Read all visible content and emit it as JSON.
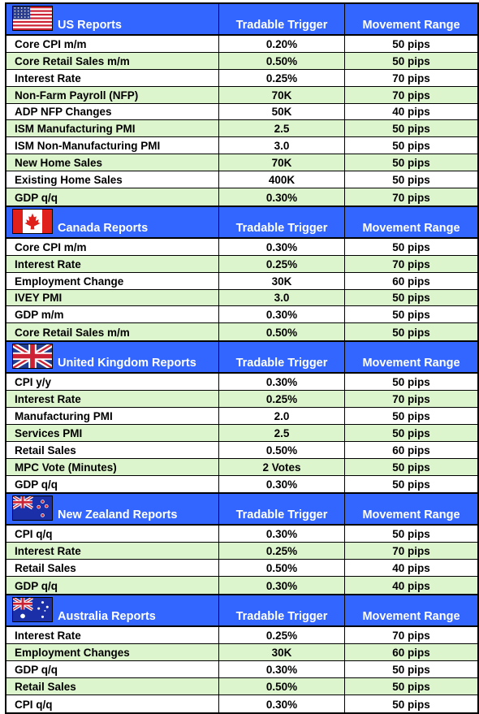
{
  "sections": [
    {
      "title": "US Reports",
      "flag": "us-flag-icon",
      "col_trigger": "Tradable Trigger",
      "col_range": "Movement Range",
      "rows": [
        {
          "name": "Core CPI m/m",
          "trigger": "0.20%",
          "range": "50 pips"
        },
        {
          "name": "Core Retail Sales m/m",
          "trigger": "0.50%",
          "range": "50 pips"
        },
        {
          "name": "Interest Rate",
          "trigger": "0.25%",
          "range": "70 pips"
        },
        {
          "name": "Non-Farm Payroll (NFP)",
          "trigger": "70K",
          "range": "70 pips"
        },
        {
          "name": "ADP NFP Changes",
          "trigger": "50K",
          "range": "40 pips"
        },
        {
          "name": "ISM Manufacturing PMI",
          "trigger": "2.5",
          "range": "50 pips"
        },
        {
          "name": "ISM Non-Manufacturing PMI",
          "trigger": "3.0",
          "range": "50 pips"
        },
        {
          "name": "New Home Sales",
          "trigger": "70K",
          "range": "50 pips"
        },
        {
          "name": "Existing Home Sales",
          "trigger": "400K",
          "range": "50 pips"
        },
        {
          "name": "GDP q/q",
          "trigger": "0.30%",
          "range": "70 pips"
        }
      ]
    },
    {
      "title": "Canada Reports",
      "flag": "canada-flag-icon",
      "col_trigger": "Tradable Trigger",
      "col_range": "Movement Range",
      "rows": [
        {
          "name": "Core CPI m/m",
          "trigger": "0.30%",
          "range": "50 pips"
        },
        {
          "name": "Interest Rate",
          "trigger": "0.25%",
          "range": "70 pips"
        },
        {
          "name": "Employment Change",
          "trigger": "30K",
          "range": "60 pips"
        },
        {
          "name": "IVEY PMI",
          "trigger": "3.0",
          "range": "50 pips"
        },
        {
          "name": "GDP m/m",
          "trigger": "0.30%",
          "range": "50 pips"
        },
        {
          "name": "Core Retail Sales m/m",
          "trigger": "0.50%",
          "range": "50 pips"
        }
      ]
    },
    {
      "title": "United Kingdom Reports",
      "flag": "uk-flag-icon",
      "col_trigger": "Tradable Trigger",
      "col_range": "Movement Range",
      "rows": [
        {
          "name": "CPI y/y",
          "trigger": "0.30%",
          "range": "50 pips"
        },
        {
          "name": "Interest Rate",
          "trigger": "0.25%",
          "range": "70 pips"
        },
        {
          "name": "Manufacturing PMI",
          "trigger": "2.0",
          "range": "50 pips"
        },
        {
          "name": "Services PMI",
          "trigger": "2.5",
          "range": "50 pips"
        },
        {
          "name": "Retail Sales",
          "trigger": "0.50%",
          "range": "60 pips"
        },
        {
          "name": "MPC Vote (Minutes)",
          "trigger": "2 Votes",
          "range": "50 pips"
        },
        {
          "name": "GDP q/q",
          "trigger": "0.30%",
          "range": "50 pips"
        }
      ]
    },
    {
      "title": "New Zealand Reports",
      "flag": "new-zealand-flag-icon",
      "col_trigger": "Tradable Trigger",
      "col_range": "Movement Range",
      "rows": [
        {
          "name": "CPI q/q",
          "trigger": "0.30%",
          "range": "50 pips"
        },
        {
          "name": "Interest Rate",
          "trigger": "0.25%",
          "range": "70 pips"
        },
        {
          "name": "Retail Sales",
          "trigger": "0.50%",
          "range": "40 pips"
        },
        {
          "name": "GDP q/q",
          "trigger": "0.30%",
          "range": "40 pips"
        }
      ]
    },
    {
      "title": "Australia Reports",
      "flag": "australia-flag-icon",
      "col_trigger": "Tradable Trigger",
      "col_range": "Movement Range",
      "rows": [
        {
          "name": "Interest Rate",
          "trigger": "0.25%",
          "range": "70 pips"
        },
        {
          "name": "Employment Changes",
          "trigger": "30K",
          "range": "60 pips"
        },
        {
          "name": "GDP q/q",
          "trigger": "0.30%",
          "range": "50 pips"
        },
        {
          "name": "Retail Sales",
          "trigger": "0.50%",
          "range": "50 pips"
        },
        {
          "name": "CPI q/q",
          "trigger": "0.30%",
          "range": "50 pips"
        }
      ]
    }
  ],
  "colors": {
    "header_bg": "#3366ff",
    "alt_row_bg": "#ddf5cc",
    "row_bg": "#ffffff"
  }
}
